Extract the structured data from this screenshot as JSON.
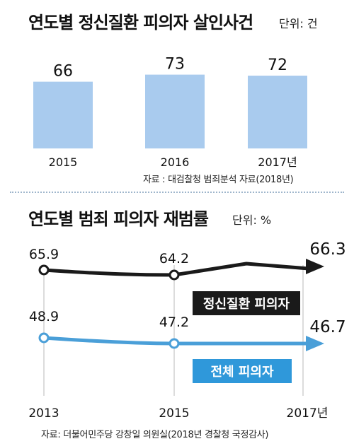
{
  "chart_data": [
    {
      "type": "bar",
      "title": "연도별 정신질환 피의자 살인사건",
      "unit": "단위: 건",
      "categories": [
        "2015",
        "2016",
        "2017년"
      ],
      "values": [
        66,
        73,
        72
      ],
      "ylim": [
        0,
        80
      ],
      "bar_color": "#a9cbee",
      "source": "자료 : 대검찰청 범죄분석 자료(2018년)"
    },
    {
      "type": "line",
      "title": "연도별 범죄 피의자 재범률",
      "unit": "단위: %",
      "x": [
        "2013",
        "2015",
        "2017년"
      ],
      "ylim": [
        40,
        70
      ],
      "series": [
        {
          "name": "정신질환 피의자",
          "values": [
            65.9,
            64.2,
            66.3
          ],
          "labels": [
            "65.9",
            "64.2",
            "66.3"
          ],
          "color": "#1a1a1a",
          "label_bg": "#1a1a1a"
        },
        {
          "name": "전체 피의자",
          "values": [
            48.9,
            47.2,
            46.7
          ],
          "labels": [
            "48.9",
            "47.2",
            "46.7"
          ],
          "color": "#4a9fd8",
          "label_bg": "#2f98da"
        }
      ],
      "source": "자료: 더불어민주당 강창일 의원실(2018년 경찰청 국정감사)"
    }
  ]
}
